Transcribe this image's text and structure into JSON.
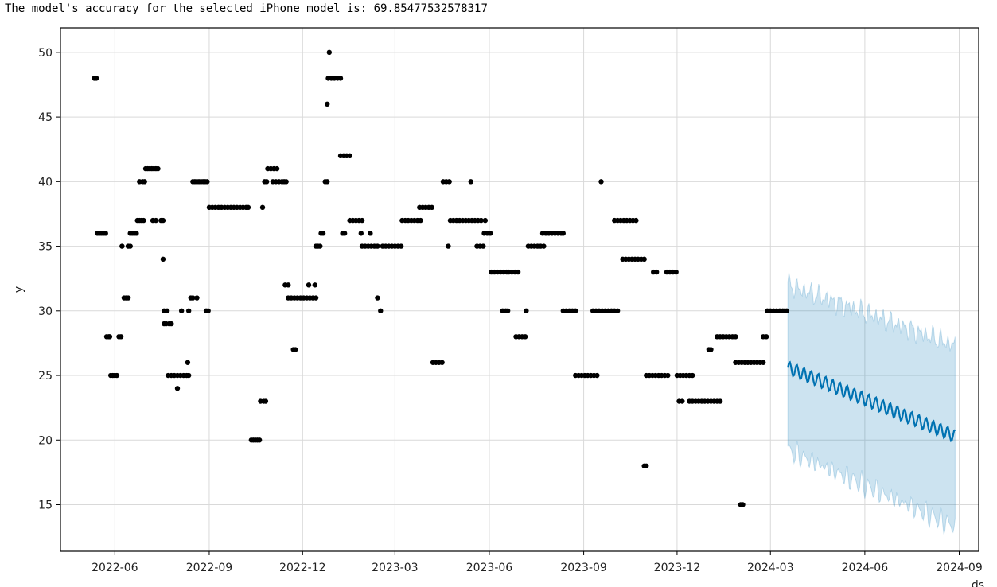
{
  "output": {
    "label": "The model's accuracy for the selected iPhone model is: ",
    "value": "69.85477532578317"
  },
  "chart_data": {
    "type": "scatter",
    "title": "",
    "xlabel": "ds",
    "ylabel": "y",
    "xlim": [
      "2022-04-09",
      "2024-09-20"
    ],
    "ylim": [
      11.4,
      51.9
    ],
    "x_ticks": [
      "2022-06",
      "2022-09",
      "2022-12",
      "2023-03",
      "2023-06",
      "2023-09",
      "2023-12",
      "2024-03",
      "2024-06",
      "2024-09"
    ],
    "y_ticks": [
      15,
      20,
      25,
      30,
      35,
      40,
      45,
      50
    ],
    "grid": true,
    "colors": {
      "observed": "#000000",
      "forecast_line": "#0072B2",
      "forecast_band": "#0072B2",
      "grid": "#d9d9d9"
    },
    "observed": [
      [
        "2022-05-12",
        48
      ],
      [
        "2022-05-13",
        48
      ],
      [
        "2022-05-14",
        48
      ],
      [
        "2022-05-15",
        36
      ],
      [
        "2022-05-17",
        36
      ],
      [
        "2022-05-19",
        36
      ],
      [
        "2022-05-21",
        36
      ],
      [
        "2022-05-23",
        36
      ],
      [
        "2022-05-24",
        28
      ],
      [
        "2022-05-26",
        28
      ],
      [
        "2022-05-27",
        28
      ],
      [
        "2022-05-28",
        25
      ],
      [
        "2022-05-30",
        25
      ],
      [
        "2022-06-01",
        25
      ],
      [
        "2022-06-03",
        25
      ],
      [
        "2022-06-05",
        28
      ],
      [
        "2022-06-07",
        28
      ],
      [
        "2022-06-08",
        35
      ],
      [
        "2022-06-10",
        31
      ],
      [
        "2022-06-12",
        31
      ],
      [
        "2022-06-14",
        31
      ],
      [
        "2022-06-14",
        35
      ],
      [
        "2022-06-16",
        35
      ],
      [
        "2022-06-16",
        36
      ],
      [
        "2022-06-18",
        36
      ],
      [
        "2022-06-20",
        36
      ],
      [
        "2022-06-22",
        36
      ],
      [
        "2022-06-23",
        37
      ],
      [
        "2022-06-25",
        37
      ],
      [
        "2022-06-27",
        37
      ],
      [
        "2022-06-29",
        37
      ],
      [
        "2022-06-25",
        40
      ],
      [
        "2022-06-28",
        40
      ],
      [
        "2022-06-30",
        40
      ],
      [
        "2022-07-01",
        41
      ],
      [
        "2022-07-03",
        41
      ],
      [
        "2022-07-05",
        41
      ],
      [
        "2022-07-07",
        41
      ],
      [
        "2022-07-09",
        41
      ],
      [
        "2022-07-11",
        41
      ],
      [
        "2022-07-13",
        41
      ],
      [
        "2022-07-08",
        37
      ],
      [
        "2022-07-11",
        37
      ],
      [
        "2022-07-16",
        37
      ],
      [
        "2022-07-18",
        37
      ],
      [
        "2022-07-18",
        34
      ],
      [
        "2022-07-19",
        30
      ],
      [
        "2022-07-22",
        30
      ],
      [
        "2022-07-19",
        29
      ],
      [
        "2022-07-21",
        29
      ],
      [
        "2022-07-24",
        29
      ],
      [
        "2022-07-26",
        29
      ],
      [
        "2022-07-23",
        25
      ],
      [
        "2022-07-26",
        25
      ],
      [
        "2022-07-29",
        25
      ],
      [
        "2022-08-01",
        25
      ],
      [
        "2022-08-04",
        25
      ],
      [
        "2022-08-07",
        25
      ],
      [
        "2022-08-10",
        25
      ],
      [
        "2022-08-12",
        25
      ],
      [
        "2022-08-01",
        24
      ],
      [
        "2022-08-05",
        30
      ],
      [
        "2022-08-11",
        26
      ],
      [
        "2022-08-12",
        30
      ],
      [
        "2022-08-14",
        31
      ],
      [
        "2022-08-16",
        31
      ],
      [
        "2022-08-20",
        31
      ],
      [
        "2022-08-16",
        40
      ],
      [
        "2022-08-18",
        40
      ],
      [
        "2022-08-20",
        40
      ],
      [
        "2022-08-22",
        40
      ],
      [
        "2022-08-24",
        40
      ],
      [
        "2022-08-26",
        40
      ],
      [
        "2022-08-28",
        40
      ],
      [
        "2022-08-30",
        40
      ],
      [
        "2022-08-29",
        30
      ],
      [
        "2022-08-31",
        30
      ],
      [
        "2022-09-01",
        38
      ],
      [
        "2022-09-04",
        38
      ],
      [
        "2022-09-07",
        38
      ],
      [
        "2022-09-10",
        38
      ],
      [
        "2022-09-13",
        38
      ],
      [
        "2022-09-16",
        38
      ],
      [
        "2022-09-19",
        38
      ],
      [
        "2022-09-22",
        38
      ],
      [
        "2022-09-25",
        38
      ],
      [
        "2022-09-28",
        38
      ],
      [
        "2022-10-01",
        38
      ],
      [
        "2022-10-04",
        38
      ],
      [
        "2022-10-07",
        38
      ],
      [
        "2022-10-09",
        38
      ],
      [
        "2022-10-12",
        20
      ],
      [
        "2022-10-14",
        20
      ],
      [
        "2022-10-16",
        20
      ],
      [
        "2022-10-18",
        20
      ],
      [
        "2022-10-20",
        20
      ],
      [
        "2022-10-21",
        23
      ],
      [
        "2022-10-24",
        23
      ],
      [
        "2022-10-26",
        23
      ],
      [
        "2022-10-23",
        38
      ],
      [
        "2022-10-25",
        40
      ],
      [
        "2022-10-27",
        40
      ],
      [
        "2022-10-28",
        41
      ],
      [
        "2022-10-31",
        41
      ],
      [
        "2022-11-03",
        41
      ],
      [
        "2022-11-06",
        41
      ],
      [
        "2022-11-02",
        40
      ],
      [
        "2022-11-05",
        40
      ],
      [
        "2022-11-08",
        40
      ],
      [
        "2022-11-11",
        40
      ],
      [
        "2022-11-13",
        40
      ],
      [
        "2022-11-15",
        40
      ],
      [
        "2022-11-14",
        32
      ],
      [
        "2022-11-17",
        32
      ],
      [
        "2022-11-17",
        31
      ],
      [
        "2022-11-20",
        31
      ],
      [
        "2022-11-23",
        31
      ],
      [
        "2022-11-26",
        31
      ],
      [
        "2022-11-29",
        31
      ],
      [
        "2022-12-02",
        31
      ],
      [
        "2022-12-05",
        31
      ],
      [
        "2022-12-08",
        31
      ],
      [
        "2022-12-11",
        31
      ],
      [
        "2022-12-14",
        31
      ],
      [
        "2022-11-22",
        27
      ],
      [
        "2022-11-24",
        27
      ],
      [
        "2022-12-07",
        32
      ],
      [
        "2022-12-13",
        32
      ],
      [
        "2022-12-14",
        35
      ],
      [
        "2022-12-16",
        35
      ],
      [
        "2022-12-18",
        35
      ],
      [
        "2022-12-19",
        36
      ],
      [
        "2022-12-21",
        36
      ],
      [
        "2022-12-23",
        40
      ],
      [
        "2022-12-25",
        40
      ],
      [
        "2022-12-25",
        46
      ],
      [
        "2022-12-27",
        50
      ],
      [
        "2022-12-26",
        48
      ],
      [
        "2022-12-29",
        48
      ],
      [
        "2023-01-01",
        48
      ],
      [
        "2023-01-04",
        48
      ],
      [
        "2023-01-07",
        48
      ],
      [
        "2023-01-07",
        42
      ],
      [
        "2023-01-10",
        42
      ],
      [
        "2023-01-13",
        42
      ],
      [
        "2023-01-16",
        42
      ],
      [
        "2023-01-09",
        36
      ],
      [
        "2023-01-11",
        36
      ],
      [
        "2023-01-16",
        37
      ],
      [
        "2023-01-19",
        37
      ],
      [
        "2023-01-22",
        37
      ],
      [
        "2023-01-25",
        37
      ],
      [
        "2023-01-28",
        37
      ],
      [
        "2023-01-27",
        36
      ],
      [
        "2023-02-05",
        36
      ],
      [
        "2023-01-28",
        35
      ],
      [
        "2023-01-31",
        35
      ],
      [
        "2023-02-03",
        35
      ],
      [
        "2023-02-06",
        35
      ],
      [
        "2023-02-09",
        35
      ],
      [
        "2023-02-12",
        35
      ],
      [
        "2023-02-12",
        31
      ],
      [
        "2023-02-15",
        30
      ],
      [
        "2023-02-17",
        35
      ],
      [
        "2023-02-20",
        35
      ],
      [
        "2023-02-23",
        35
      ],
      [
        "2023-02-26",
        35
      ],
      [
        "2023-03-01",
        35
      ],
      [
        "2023-03-04",
        35
      ],
      [
        "2023-03-07",
        35
      ],
      [
        "2023-03-08",
        37
      ],
      [
        "2023-03-11",
        37
      ],
      [
        "2023-03-14",
        37
      ],
      [
        "2023-03-17",
        37
      ],
      [
        "2023-03-20",
        37
      ],
      [
        "2023-03-23",
        37
      ],
      [
        "2023-03-26",
        37
      ],
      [
        "2023-03-25",
        38
      ],
      [
        "2023-03-28",
        38
      ],
      [
        "2023-03-31",
        38
      ],
      [
        "2023-04-03",
        38
      ],
      [
        "2023-04-06",
        38
      ],
      [
        "2023-04-07",
        26
      ],
      [
        "2023-04-10",
        26
      ],
      [
        "2023-04-13",
        26
      ],
      [
        "2023-04-16",
        26
      ],
      [
        "2023-04-17",
        40
      ],
      [
        "2023-04-20",
        40
      ],
      [
        "2023-04-23",
        40
      ],
      [
        "2023-04-22",
        35
      ],
      [
        "2023-04-24",
        37
      ],
      [
        "2023-04-27",
        37
      ],
      [
        "2023-04-30",
        37
      ],
      [
        "2023-05-03",
        37
      ],
      [
        "2023-05-06",
        37
      ],
      [
        "2023-05-09",
        37
      ],
      [
        "2023-05-12",
        37
      ],
      [
        "2023-05-15",
        37
      ],
      [
        "2023-05-18",
        37
      ],
      [
        "2023-05-21",
        37
      ],
      [
        "2023-05-24",
        37
      ],
      [
        "2023-05-14",
        40
      ],
      [
        "2023-05-20",
        35
      ],
      [
        "2023-05-23",
        35
      ],
      [
        "2023-05-26",
        35
      ],
      [
        "2023-05-28",
        37
      ],
      [
        "2023-05-27",
        36
      ],
      [
        "2023-05-30",
        36
      ],
      [
        "2023-06-02",
        36
      ],
      [
        "2023-06-03",
        33
      ],
      [
        "2023-06-06",
        33
      ],
      [
        "2023-06-09",
        33
      ],
      [
        "2023-06-12",
        33
      ],
      [
        "2023-06-15",
        33
      ],
      [
        "2023-06-18",
        33
      ],
      [
        "2023-06-14",
        30
      ],
      [
        "2023-06-17",
        30
      ],
      [
        "2023-06-19",
        30
      ],
      [
        "2023-06-20",
        33
      ],
      [
        "2023-06-23",
        33
      ],
      [
        "2023-06-26",
        33
      ],
      [
        "2023-06-29",
        33
      ],
      [
        "2023-06-27",
        28
      ],
      [
        "2023-06-30",
        28
      ],
      [
        "2023-07-03",
        28
      ],
      [
        "2023-07-06",
        28
      ],
      [
        "2023-07-07",
        30
      ],
      [
        "2023-07-09",
        35
      ],
      [
        "2023-07-12",
        35
      ],
      [
        "2023-07-15",
        35
      ],
      [
        "2023-07-18",
        35
      ],
      [
        "2023-07-21",
        35
      ],
      [
        "2023-07-24",
        35
      ],
      [
        "2023-07-23",
        36
      ],
      [
        "2023-07-26",
        36
      ],
      [
        "2023-07-29",
        36
      ],
      [
        "2023-08-01",
        36
      ],
      [
        "2023-08-04",
        36
      ],
      [
        "2023-08-07",
        36
      ],
      [
        "2023-08-10",
        36
      ],
      [
        "2023-08-12",
        36
      ],
      [
        "2023-08-12",
        30
      ],
      [
        "2023-08-15",
        30
      ],
      [
        "2023-08-18",
        30
      ],
      [
        "2023-08-21",
        30
      ],
      [
        "2023-08-24",
        30
      ],
      [
        "2023-08-24",
        25
      ],
      [
        "2023-08-27",
        25
      ],
      [
        "2023-08-30",
        25
      ],
      [
        "2023-09-02",
        25
      ],
      [
        "2023-09-05",
        25
      ],
      [
        "2023-09-08",
        25
      ],
      [
        "2023-09-11",
        25
      ],
      [
        "2023-09-14",
        25
      ],
      [
        "2023-09-10",
        30
      ],
      [
        "2023-09-13",
        30
      ],
      [
        "2023-09-16",
        30
      ],
      [
        "2023-09-19",
        30
      ],
      [
        "2023-09-22",
        30
      ],
      [
        "2023-09-25",
        30
      ],
      [
        "2023-09-28",
        30
      ],
      [
        "2023-10-01",
        30
      ],
      [
        "2023-10-04",
        30
      ],
      [
        "2023-09-18",
        40
      ],
      [
        "2023-10-01",
        37
      ],
      [
        "2023-10-04",
        37
      ],
      [
        "2023-10-07",
        37
      ],
      [
        "2023-10-10",
        37
      ],
      [
        "2023-10-13",
        37
      ],
      [
        "2023-10-16",
        37
      ],
      [
        "2023-10-19",
        37
      ],
      [
        "2023-10-22",
        37
      ],
      [
        "2023-10-09",
        34
      ],
      [
        "2023-10-12",
        34
      ],
      [
        "2023-10-15",
        34
      ],
      [
        "2023-10-18",
        34
      ],
      [
        "2023-10-21",
        34
      ],
      [
        "2023-10-24",
        34
      ],
      [
        "2023-10-27",
        34
      ],
      [
        "2023-10-30",
        34
      ],
      [
        "2023-10-30",
        18
      ],
      [
        "2023-11-01",
        18
      ],
      [
        "2023-11-01",
        25
      ],
      [
        "2023-11-04",
        25
      ],
      [
        "2023-11-07",
        25
      ],
      [
        "2023-11-10",
        25
      ],
      [
        "2023-11-13",
        25
      ],
      [
        "2023-11-16",
        25
      ],
      [
        "2023-11-19",
        25
      ],
      [
        "2023-11-22",
        25
      ],
      [
        "2023-11-08",
        33
      ],
      [
        "2023-11-11",
        33
      ],
      [
        "2023-11-21",
        33
      ],
      [
        "2023-11-24",
        33
      ],
      [
        "2023-11-27",
        33
      ],
      [
        "2023-11-30",
        33
      ],
      [
        "2023-12-01",
        25
      ],
      [
        "2023-12-04",
        25
      ],
      [
        "2023-12-07",
        25
      ],
      [
        "2023-12-10",
        25
      ],
      [
        "2023-12-13",
        25
      ],
      [
        "2023-12-16",
        25
      ],
      [
        "2023-12-03",
        23
      ],
      [
        "2023-12-06",
        23
      ],
      [
        "2023-12-13",
        23
      ],
      [
        "2023-12-16",
        23
      ],
      [
        "2023-12-19",
        23
      ],
      [
        "2023-12-22",
        23
      ],
      [
        "2023-12-25",
        23
      ],
      [
        "2023-12-28",
        23
      ],
      [
        "2023-12-31",
        23
      ],
      [
        "2024-01-03",
        23
      ],
      [
        "2024-01-06",
        23
      ],
      [
        "2024-01-09",
        23
      ],
      [
        "2024-01-12",
        23
      ],
      [
        "2024-01-01",
        27
      ],
      [
        "2024-01-03",
        27
      ],
      [
        "2024-01-09",
        28
      ],
      [
        "2024-01-12",
        28
      ],
      [
        "2024-01-15",
        28
      ],
      [
        "2024-01-18",
        28
      ],
      [
        "2024-01-21",
        28
      ],
      [
        "2024-01-24",
        28
      ],
      [
        "2024-01-27",
        28
      ],
      [
        "2024-01-27",
        26
      ],
      [
        "2024-01-30",
        26
      ],
      [
        "2024-02-02",
        26
      ],
      [
        "2024-02-05",
        26
      ],
      [
        "2024-02-08",
        26
      ],
      [
        "2024-02-11",
        26
      ],
      [
        "2024-02-14",
        26
      ],
      [
        "2024-02-17",
        26
      ],
      [
        "2024-02-20",
        26
      ],
      [
        "2024-02-23",
        26
      ],
      [
        "2024-02-01",
        15
      ],
      [
        "2024-02-03",
        15
      ],
      [
        "2024-02-23",
        28
      ],
      [
        "2024-02-26",
        28
      ],
      [
        "2024-02-27",
        30
      ],
      [
        "2024-03-01",
        30
      ],
      [
        "2024-03-04",
        30
      ],
      [
        "2024-03-07",
        30
      ],
      [
        "2024-03-10",
        30
      ],
      [
        "2024-03-13",
        30
      ],
      [
        "2024-03-15",
        30
      ],
      [
        "2024-03-17",
        30
      ]
    ],
    "forecast": {
      "start": "2024-03-18",
      "end": "2024-08-28",
      "yhat_start": 25.6,
      "yhat_end": 20.3,
      "band_halfwidth_start": 6.4,
      "band_halfwidth_end": 7.0,
      "weekly_amplitude": 0.5
    }
  }
}
